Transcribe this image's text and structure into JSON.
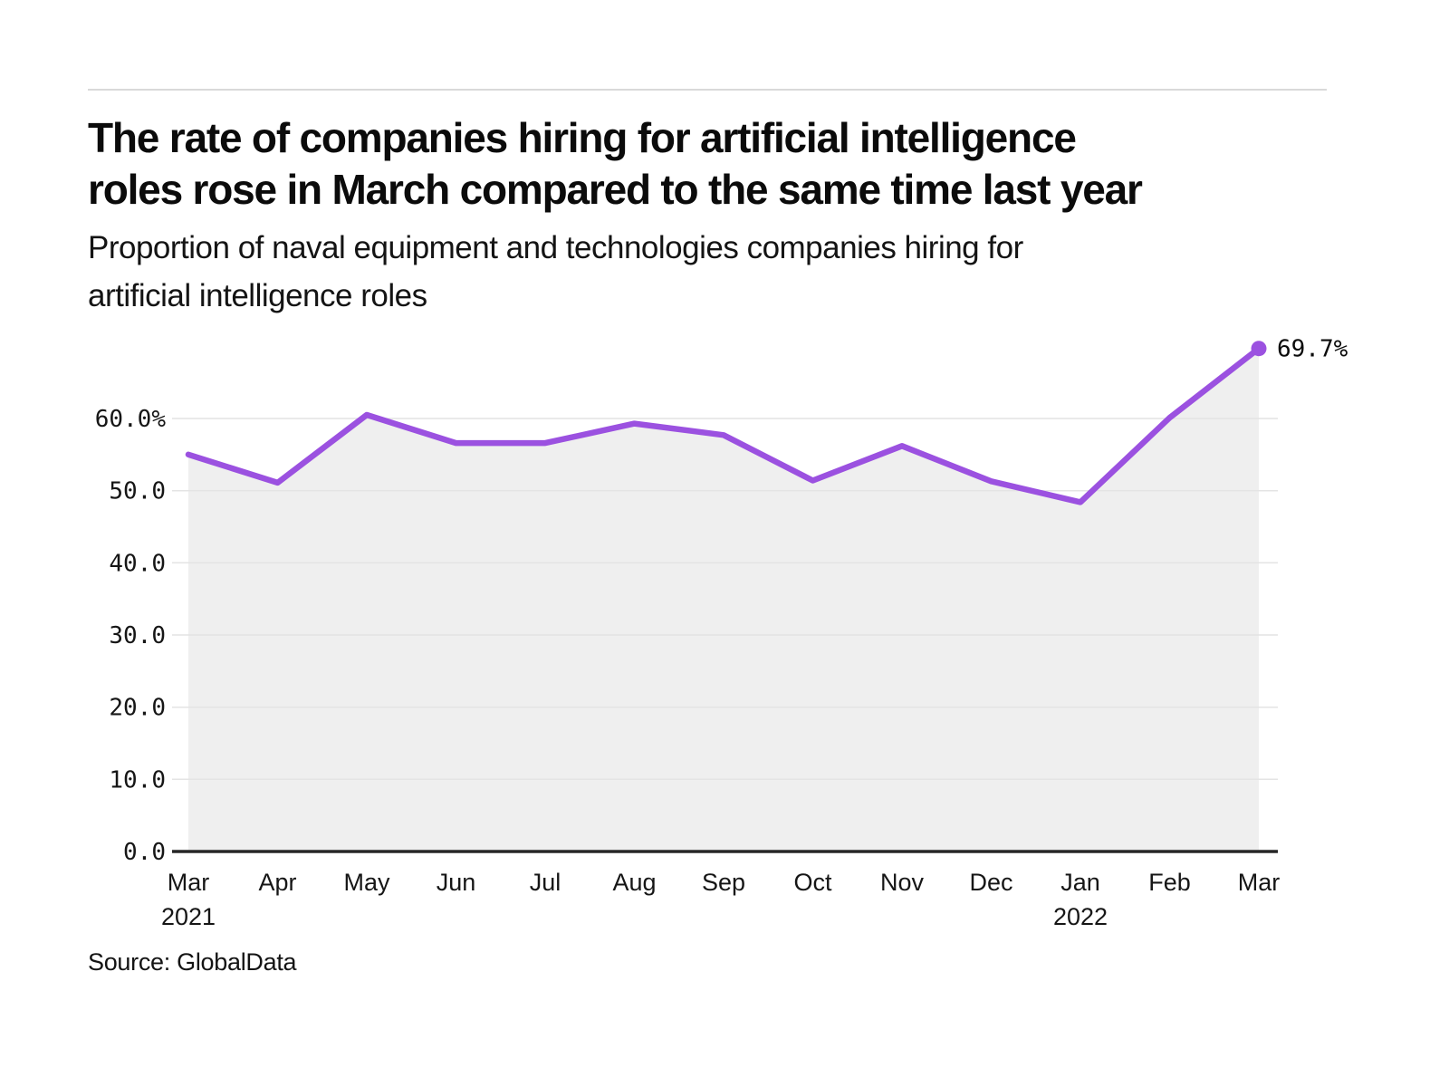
{
  "page": {
    "title_line1": "The rate of companies hiring for artificial intelligence",
    "title_line2": "roles rose in March compared to the same time last year",
    "subtitle_line1": "Proportion of naval equipment and technologies companies hiring for",
    "subtitle_line2": "artificial intelligence roles",
    "source": "Source: GlobalData"
  },
  "colors": {
    "line": "#9B51E0",
    "marker": "#9B51E0",
    "area_fill": "#EFEFEF",
    "gridline": "#E4E4E4",
    "axis_line": "#262626",
    "tick_text": "#161616",
    "top_rule": "#D9D9D9"
  },
  "chart_data": {
    "type": "line",
    "title": "The rate of companies hiring for artificial intelligence roles rose in March compared to the same time last year",
    "subtitle": "Proportion of naval equipment and technologies companies hiring for artificial intelligence roles",
    "xlabel": "",
    "ylabel": "",
    "grid": "horizontal",
    "legend": "none",
    "ylim": [
      0,
      70
    ],
    "x_ticks": [
      {
        "month": "Mar",
        "year": "2021"
      },
      {
        "month": "Apr"
      },
      {
        "month": "May"
      },
      {
        "month": "Jun"
      },
      {
        "month": "Jul"
      },
      {
        "month": "Aug"
      },
      {
        "month": "Sep"
      },
      {
        "month": "Oct"
      },
      {
        "month": "Nov"
      },
      {
        "month": "Dec"
      },
      {
        "month": "Jan",
        "year": "2022"
      },
      {
        "month": "Feb"
      },
      {
        "month": "Mar"
      }
    ],
    "y_ticks": [
      {
        "v": 0,
        "label": "0.0"
      },
      {
        "v": 10,
        "label": "10.0"
      },
      {
        "v": 20,
        "label": "20.0"
      },
      {
        "v": 30,
        "label": "30.0"
      },
      {
        "v": 40,
        "label": "40.0"
      },
      {
        "v": 50,
        "label": "50.0"
      },
      {
        "v": 60,
        "label": "60.0%"
      }
    ],
    "series": [
      {
        "name": "Proportion of companies hiring for AI roles",
        "values": [
          55.0,
          51.1,
          60.5,
          56.6,
          56.6,
          59.3,
          57.7,
          51.4,
          56.2,
          51.3,
          48.4,
          60.1,
          69.7
        ]
      }
    ],
    "last_point_label": "69.7%"
  }
}
